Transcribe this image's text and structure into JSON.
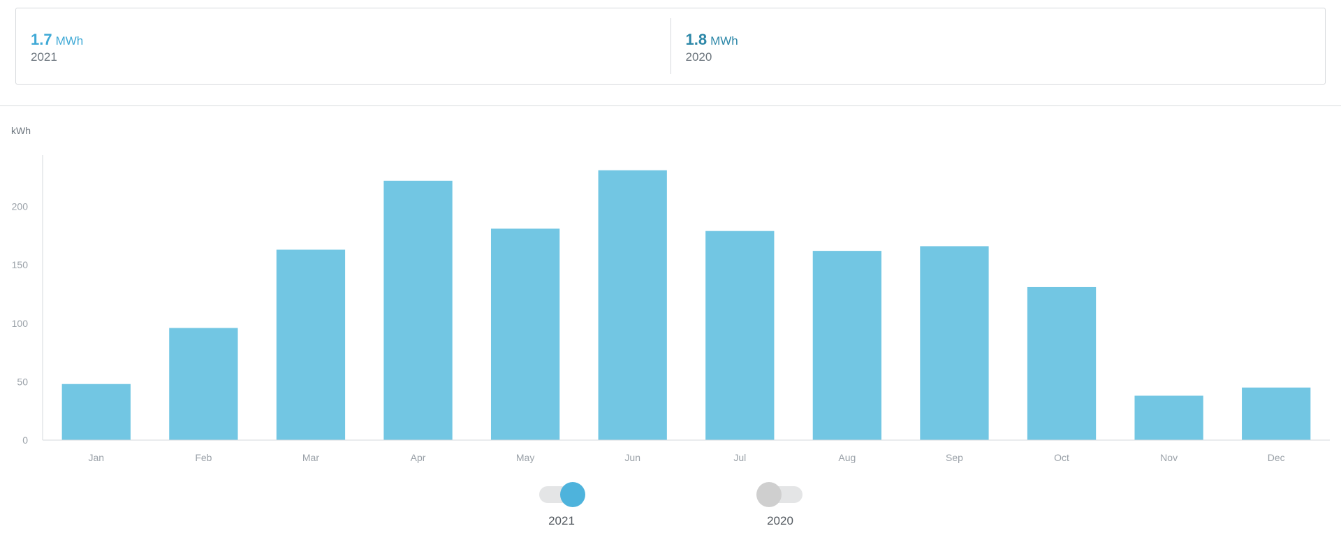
{
  "summary": [
    {
      "value": "1.7",
      "unit": "MWh",
      "year": "2021",
      "color": "#3fa9d6"
    },
    {
      "value": "1.8",
      "unit": "MWh",
      "year": "2020",
      "color": "#2c87a8"
    }
  ],
  "legend": [
    {
      "label": "2021",
      "active": true,
      "color": "#4eb3dc"
    },
    {
      "label": "2020",
      "active": false,
      "color": "#cfcfcf"
    }
  ],
  "chart_data": {
    "type": "bar",
    "ylabel": "kWh",
    "xlabel": "",
    "title": "",
    "ylim": [
      0,
      244
    ],
    "yticks": [
      0,
      50,
      100,
      150,
      200
    ],
    "grid": false,
    "categories": [
      "Jan",
      "Feb",
      "Mar",
      "Apr",
      "May",
      "Jun",
      "Jul",
      "Aug",
      "Sep",
      "Oct",
      "Nov",
      "Dec"
    ],
    "series": [
      {
        "values": [
          48,
          96,
          163,
          222,
          181,
          231,
          179,
          162,
          166,
          131,
          38,
          45
        ],
        "color": "#72c6e3"
      }
    ]
  }
}
